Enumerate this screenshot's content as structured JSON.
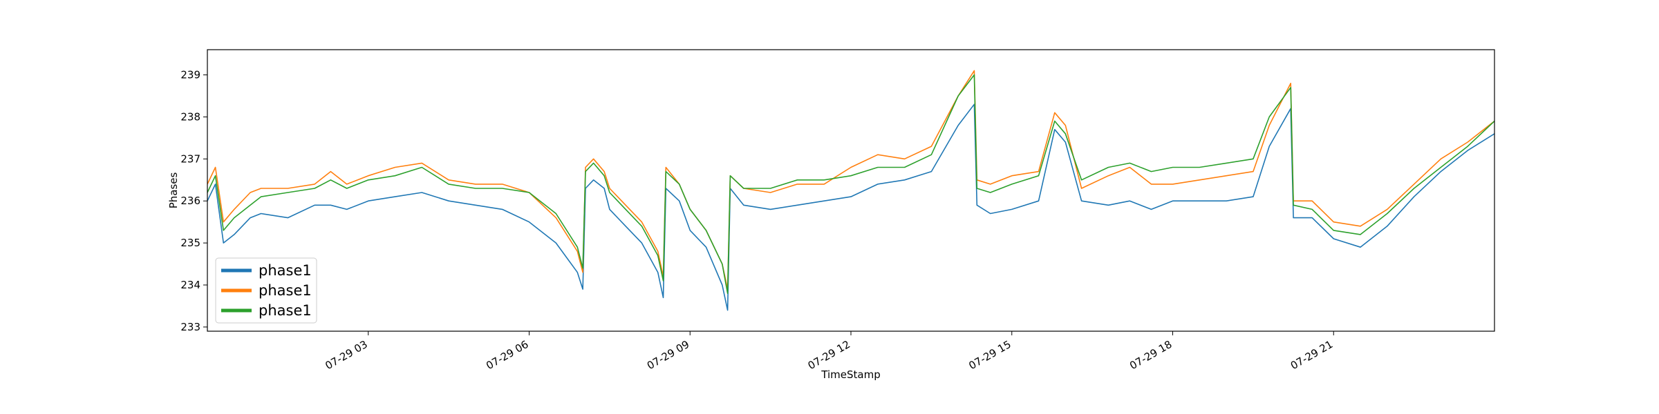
{
  "chart_data": {
    "type": "line",
    "xlabel": "TimeStamp",
    "ylabel": "Phases",
    "x_range": [
      "07-29 00:00",
      "07-29 24:00"
    ],
    "ylim": [
      232.9,
      239.6
    ],
    "x_ticks": [
      {
        "hour": 3,
        "label": "07-29 03"
      },
      {
        "hour": 6,
        "label": "07-29 06"
      },
      {
        "hour": 9,
        "label": "07-29 09"
      },
      {
        "hour": 12,
        "label": "07-29 12"
      },
      {
        "hour": 15,
        "label": "07-29 15"
      },
      {
        "hour": 18,
        "label": "07-29 18"
      },
      {
        "hour": 21,
        "label": "07-29 21"
      }
    ],
    "y_ticks": [
      233,
      234,
      235,
      236,
      237,
      238,
      239
    ],
    "grid": false,
    "legend_position": "lower-left",
    "series": [
      {
        "name": "phase1",
        "color": "#1f77b4",
        "points": [
          [
            0,
            236.0
          ],
          [
            0.15,
            236.4
          ],
          [
            0.3,
            235.0
          ],
          [
            0.5,
            235.2
          ],
          [
            0.8,
            235.6
          ],
          [
            1.0,
            235.7
          ],
          [
            1.5,
            235.6
          ],
          [
            2.0,
            235.9
          ],
          [
            2.3,
            235.9
          ],
          [
            2.6,
            235.8
          ],
          [
            3.0,
            236.0
          ],
          [
            3.5,
            236.1
          ],
          [
            4.0,
            236.2
          ],
          [
            4.5,
            236.0
          ],
          [
            5.0,
            235.9
          ],
          [
            5.5,
            235.8
          ],
          [
            6.0,
            235.5
          ],
          [
            6.5,
            235.0
          ],
          [
            6.9,
            234.3
          ],
          [
            7.0,
            233.9
          ],
          [
            7.05,
            236.3
          ],
          [
            7.2,
            236.5
          ],
          [
            7.4,
            236.3
          ],
          [
            7.5,
            235.8
          ],
          [
            7.8,
            235.4
          ],
          [
            8.1,
            235.0
          ],
          [
            8.4,
            234.3
          ],
          [
            8.5,
            233.7
          ],
          [
            8.55,
            236.3
          ],
          [
            8.8,
            236.0
          ],
          [
            9.0,
            235.3
          ],
          [
            9.3,
            234.9
          ],
          [
            9.6,
            234.0
          ],
          [
            9.7,
            233.4
          ],
          [
            9.75,
            236.3
          ],
          [
            10.0,
            235.9
          ],
          [
            10.5,
            235.8
          ],
          [
            11.0,
            235.9
          ],
          [
            11.5,
            236.0
          ],
          [
            12.0,
            236.1
          ],
          [
            12.5,
            236.4
          ],
          [
            13.0,
            236.5
          ],
          [
            13.5,
            236.7
          ],
          [
            14.0,
            237.8
          ],
          [
            14.3,
            238.3
          ],
          [
            14.35,
            235.9
          ],
          [
            14.6,
            235.7
          ],
          [
            15.0,
            235.8
          ],
          [
            15.5,
            236.0
          ],
          [
            15.8,
            237.7
          ],
          [
            16.0,
            237.4
          ],
          [
            16.3,
            236.0
          ],
          [
            16.8,
            235.9
          ],
          [
            17.2,
            236.0
          ],
          [
            17.6,
            235.8
          ],
          [
            18.0,
            236.0
          ],
          [
            18.5,
            236.0
          ],
          [
            19.0,
            236.0
          ],
          [
            19.5,
            236.1
          ],
          [
            19.8,
            237.3
          ],
          [
            20.2,
            238.2
          ],
          [
            20.25,
            235.6
          ],
          [
            20.6,
            235.6
          ],
          [
            21.0,
            235.1
          ],
          [
            21.5,
            234.9
          ],
          [
            22.0,
            235.4
          ],
          [
            22.5,
            236.1
          ],
          [
            23.0,
            236.7
          ],
          [
            23.5,
            237.2
          ],
          [
            24.0,
            237.6
          ]
        ]
      },
      {
        "name": "phase1",
        "color": "#ff7f0e",
        "points": [
          [
            0,
            236.4
          ],
          [
            0.15,
            236.8
          ],
          [
            0.3,
            235.5
          ],
          [
            0.5,
            235.8
          ],
          [
            0.8,
            236.2
          ],
          [
            1.0,
            236.3
          ],
          [
            1.5,
            236.3
          ],
          [
            2.0,
            236.4
          ],
          [
            2.3,
            236.7
          ],
          [
            2.6,
            236.4
          ],
          [
            3.0,
            236.6
          ],
          [
            3.5,
            236.8
          ],
          [
            4.0,
            236.9
          ],
          [
            4.5,
            236.5
          ],
          [
            5.0,
            236.4
          ],
          [
            5.5,
            236.4
          ],
          [
            6.0,
            236.2
          ],
          [
            6.5,
            235.6
          ],
          [
            6.9,
            234.8
          ],
          [
            7.0,
            234.3
          ],
          [
            7.05,
            236.8
          ],
          [
            7.2,
            237.0
          ],
          [
            7.4,
            236.7
          ],
          [
            7.5,
            236.3
          ],
          [
            7.8,
            235.9
          ],
          [
            8.1,
            235.5
          ],
          [
            8.4,
            234.8
          ],
          [
            8.5,
            234.2
          ],
          [
            8.55,
            236.8
          ],
          [
            8.8,
            236.4
          ],
          [
            9.0,
            235.8
          ],
          [
            9.3,
            235.3
          ],
          [
            9.6,
            234.5
          ],
          [
            9.7,
            233.9
          ],
          [
            9.75,
            236.6
          ],
          [
            10.0,
            236.3
          ],
          [
            10.5,
            236.2
          ],
          [
            11.0,
            236.4
          ],
          [
            11.5,
            236.4
          ],
          [
            12.0,
            236.8
          ],
          [
            12.5,
            237.1
          ],
          [
            13.0,
            237.0
          ],
          [
            13.5,
            237.3
          ],
          [
            14.0,
            238.5
          ],
          [
            14.3,
            239.1
          ],
          [
            14.35,
            236.5
          ],
          [
            14.6,
            236.4
          ],
          [
            15.0,
            236.6
          ],
          [
            15.5,
            236.7
          ],
          [
            15.8,
            238.1
          ],
          [
            16.0,
            237.8
          ],
          [
            16.3,
            236.3
          ],
          [
            16.8,
            236.6
          ],
          [
            17.2,
            236.8
          ],
          [
            17.6,
            236.4
          ],
          [
            18.0,
            236.4
          ],
          [
            18.5,
            236.5
          ],
          [
            19.0,
            236.6
          ],
          [
            19.5,
            236.7
          ],
          [
            19.8,
            237.8
          ],
          [
            20.2,
            238.8
          ],
          [
            20.25,
            236.0
          ],
          [
            20.6,
            236.0
          ],
          [
            21.0,
            235.5
          ],
          [
            21.5,
            235.4
          ],
          [
            22.0,
            235.8
          ],
          [
            22.5,
            236.4
          ],
          [
            23.0,
            237.0
          ],
          [
            23.5,
            237.4
          ],
          [
            24.0,
            237.9
          ]
        ]
      },
      {
        "name": "phase1",
        "color": "#2ca02c",
        "points": [
          [
            0,
            236.2
          ],
          [
            0.15,
            236.6
          ],
          [
            0.3,
            235.3
          ],
          [
            0.5,
            235.6
          ],
          [
            0.8,
            235.9
          ],
          [
            1.0,
            236.1
          ],
          [
            1.5,
            236.2
          ],
          [
            2.0,
            236.3
          ],
          [
            2.3,
            236.5
          ],
          [
            2.6,
            236.3
          ],
          [
            3.0,
            236.5
          ],
          [
            3.5,
            236.6
          ],
          [
            4.0,
            236.8
          ],
          [
            4.5,
            236.4
          ],
          [
            5.0,
            236.3
          ],
          [
            5.5,
            236.3
          ],
          [
            6.0,
            236.2
          ],
          [
            6.5,
            235.7
          ],
          [
            6.9,
            234.9
          ],
          [
            7.0,
            234.4
          ],
          [
            7.05,
            236.7
          ],
          [
            7.2,
            236.9
          ],
          [
            7.4,
            236.6
          ],
          [
            7.5,
            236.2
          ],
          [
            7.8,
            235.8
          ],
          [
            8.1,
            235.4
          ],
          [
            8.4,
            234.7
          ],
          [
            8.5,
            234.1
          ],
          [
            8.55,
            236.7
          ],
          [
            8.8,
            236.4
          ],
          [
            9.0,
            235.8
          ],
          [
            9.3,
            235.3
          ],
          [
            9.6,
            234.5
          ],
          [
            9.7,
            233.8
          ],
          [
            9.75,
            236.6
          ],
          [
            10.0,
            236.3
          ],
          [
            10.5,
            236.3
          ],
          [
            11.0,
            236.5
          ],
          [
            11.5,
            236.5
          ],
          [
            12.0,
            236.6
          ],
          [
            12.5,
            236.8
          ],
          [
            13.0,
            236.8
          ],
          [
            13.5,
            237.1
          ],
          [
            14.0,
            238.5
          ],
          [
            14.3,
            239.0
          ],
          [
            14.35,
            236.3
          ],
          [
            14.6,
            236.2
          ],
          [
            15.0,
            236.4
          ],
          [
            15.5,
            236.6
          ],
          [
            15.8,
            237.9
          ],
          [
            16.0,
            237.6
          ],
          [
            16.3,
            236.5
          ],
          [
            16.8,
            236.8
          ],
          [
            17.2,
            236.9
          ],
          [
            17.6,
            236.7
          ],
          [
            18.0,
            236.8
          ],
          [
            18.5,
            236.8
          ],
          [
            19.0,
            236.9
          ],
          [
            19.5,
            237.0
          ],
          [
            19.8,
            238.0
          ],
          [
            20.2,
            238.7
          ],
          [
            20.25,
            235.9
          ],
          [
            20.6,
            235.8
          ],
          [
            21.0,
            235.3
          ],
          [
            21.5,
            235.2
          ],
          [
            22.0,
            235.7
          ],
          [
            22.5,
            236.3
          ],
          [
            23.0,
            236.8
          ],
          [
            23.5,
            237.3
          ],
          [
            24.0,
            237.9
          ]
        ]
      }
    ]
  }
}
